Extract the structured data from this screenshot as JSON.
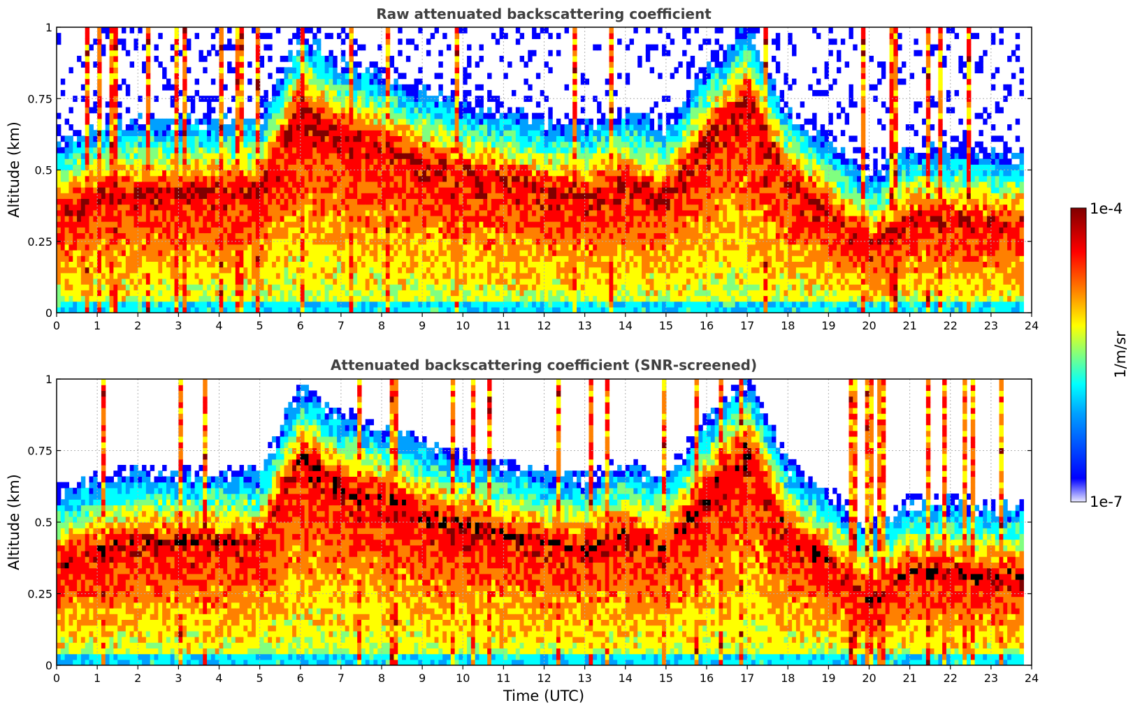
{
  "chart_data": [
    {
      "type": "heatmap",
      "title": "Raw attenuated backscattering coefficient",
      "xlabel": "",
      "ylabel": "Altitude (km)",
      "xlim": [
        0,
        24
      ],
      "ylim": [
        0,
        1
      ],
      "xticks": [
        "0",
        "1",
        "2",
        "3",
        "4",
        "5",
        "6",
        "7",
        "8",
        "9",
        "10",
        "11",
        "12",
        "13",
        "14",
        "15",
        "16",
        "17",
        "18",
        "19",
        "20",
        "21",
        "22",
        "23",
        "24"
      ],
      "yticks": [
        "0",
        "0.25",
        "0.5",
        "0.75",
        "1"
      ],
      "grid": true,
      "screened": false,
      "layer_profile": {
        "description": "approximate altitude (km) of strongest backscatter vs time (UTC)",
        "time": [
          0,
          1,
          2,
          3,
          4,
          5,
          6,
          7,
          8,
          9,
          10,
          11,
          12,
          13,
          14,
          15,
          16,
          17,
          18,
          19,
          20,
          21,
          22,
          23,
          24
        ],
        "altitude": [
          0.35,
          0.4,
          0.42,
          0.42,
          0.42,
          0.42,
          0.72,
          0.62,
          0.58,
          0.52,
          0.48,
          0.45,
          0.42,
          0.4,
          0.45,
          0.4,
          0.6,
          0.75,
          0.45,
          0.35,
          0.22,
          0.32,
          0.32,
          0.3,
          0.3
        ]
      }
    },
    {
      "type": "heatmap",
      "title": "Attenuated backscattering coefficient (SNR-screened)",
      "xlabel": "Time (UTC)",
      "ylabel": "Altitude (km)",
      "xlim": [
        0,
        24
      ],
      "ylim": [
        0,
        1
      ],
      "xticks": [
        "0",
        "1",
        "2",
        "3",
        "4",
        "5",
        "6",
        "7",
        "8",
        "9",
        "10",
        "11",
        "12",
        "13",
        "14",
        "15",
        "16",
        "17",
        "18",
        "19",
        "20",
        "21",
        "22",
        "23",
        "24"
      ],
      "yticks": [
        "0",
        "0.25",
        "0.5",
        "0.75",
        "1"
      ],
      "grid": true,
      "screened": true,
      "layer_profile": {
        "description": "approximate altitude (km) of strongest backscatter vs time (UTC)",
        "time": [
          0,
          1,
          2,
          3,
          4,
          5,
          6,
          7,
          8,
          9,
          10,
          11,
          12,
          13,
          14,
          15,
          16,
          17,
          18,
          19,
          20,
          21,
          22,
          23,
          24
        ],
        "altitude": [
          0.35,
          0.4,
          0.42,
          0.42,
          0.42,
          0.42,
          0.72,
          0.62,
          0.58,
          0.52,
          0.48,
          0.45,
          0.42,
          0.4,
          0.45,
          0.4,
          0.6,
          0.75,
          0.45,
          0.35,
          0.22,
          0.32,
          0.32,
          0.3,
          0.3
        ]
      }
    }
  ],
  "colorbar": {
    "label": "1/m/sr",
    "max_label": "1e-4",
    "min_label": "1e-7",
    "scale": "log",
    "range": [
      1e-07,
      0.0001
    ],
    "colors": [
      "#e8e8ff",
      "#0000ff",
      "#00a0ff",
      "#00ffff",
      "#80ff80",
      "#ffff00",
      "#ff8000",
      "#ff0000",
      "#800000"
    ]
  }
}
